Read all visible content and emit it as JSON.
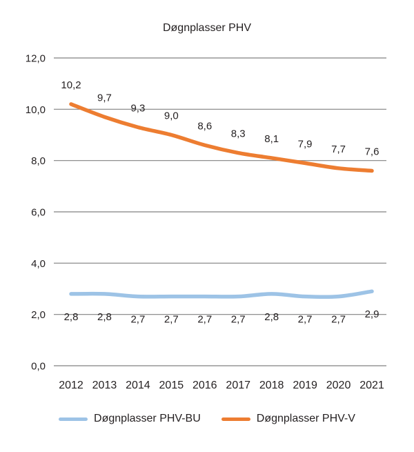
{
  "chart_data": {
    "type": "line",
    "title": "Døgnplasser PHV",
    "categories": [
      "2012",
      "2013",
      "2014",
      "2015",
      "2016",
      "2017",
      "2018",
      "2019",
      "2020",
      "2021"
    ],
    "series": [
      {
        "name": "Døgnplasser PHV-BU",
        "color": "#9DC3E6",
        "values": [
          2.8,
          2.8,
          2.7,
          2.7,
          2.7,
          2.7,
          2.8,
          2.7,
          2.7,
          2.9
        ],
        "labels": [
          "2,8",
          "2,8",
          "2,7",
          "2,7",
          "2,7",
          "2,7",
          "2,8",
          "2,7",
          "2,7",
          "2,9"
        ],
        "label_position": "below"
      },
      {
        "name": "Døgnplasser PHV-V",
        "color": "#ED7D31",
        "values": [
          10.2,
          9.7,
          9.3,
          9.0,
          8.6,
          8.3,
          8.1,
          7.9,
          7.7,
          7.6
        ],
        "labels": [
          "10,2",
          "9,7",
          "9,3",
          "9,0",
          "8,6",
          "8,3",
          "8,1",
          "7,9",
          "7,7",
          "7,6"
        ],
        "label_position": "above"
      }
    ],
    "y_ticks": {
      "values": [
        0,
        2,
        4,
        6,
        8,
        10,
        12
      ],
      "labels": [
        "0,0",
        "2,0",
        "4,0",
        "6,0",
        "8,0",
        "10,0",
        "12,0"
      ]
    },
    "ylim": [
      0,
      12
    ],
    "grid": true,
    "legend_position": "bottom",
    "text_color": "#231F20",
    "grid_color": "#808080"
  }
}
